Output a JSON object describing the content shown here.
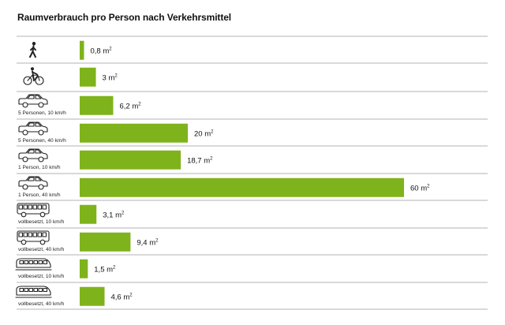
{
  "chart_data": {
    "type": "bar",
    "orientation": "horizontal",
    "title": "Raumverbrauch pro Person nach Verkehrsmittel",
    "unit": "m²",
    "xlim": [
      0,
      60
    ],
    "grid": false,
    "legend": "none",
    "bar_color": "#7fb31b",
    "categories": [
      {
        "icon": "pedestrian-icon",
        "label": "",
        "value": 0.8,
        "value_label": "0,8 m"
      },
      {
        "icon": "bicycle-icon",
        "label": "",
        "value": 3,
        "value_label": "3 m"
      },
      {
        "icon": "car-icon",
        "label": "5 Personen, 10 km/h",
        "value": 6.2,
        "value_label": "6,2 m"
      },
      {
        "icon": "car-icon",
        "label": "5 Personen, 40 km/h",
        "value": 20,
        "value_label": "20 m"
      },
      {
        "icon": "car-icon",
        "label": "1 Person, 10 km/h",
        "value": 18.7,
        "value_label": "18,7 m"
      },
      {
        "icon": "car-icon",
        "label": "1 Person, 40 km/h",
        "value": 60,
        "value_label": "60 m"
      },
      {
        "icon": "bus-icon",
        "label": "vollbesetzt, 10 km/h",
        "value": 3.1,
        "value_label": "3,1 m"
      },
      {
        "icon": "bus-icon",
        "label": "vollbesetzt, 40 km/h",
        "value": 9.4,
        "value_label": "9,4 m"
      },
      {
        "icon": "tram-icon",
        "label": "vollbesetzt, 10 km/h",
        "value": 1.5,
        "value_label": "1,5 m"
      },
      {
        "icon": "tram-icon",
        "label": "vollbesetzt, 40 km/h",
        "value": 4.6,
        "value_label": "4,6 m"
      }
    ],
    "unit_superscript": "2"
  }
}
